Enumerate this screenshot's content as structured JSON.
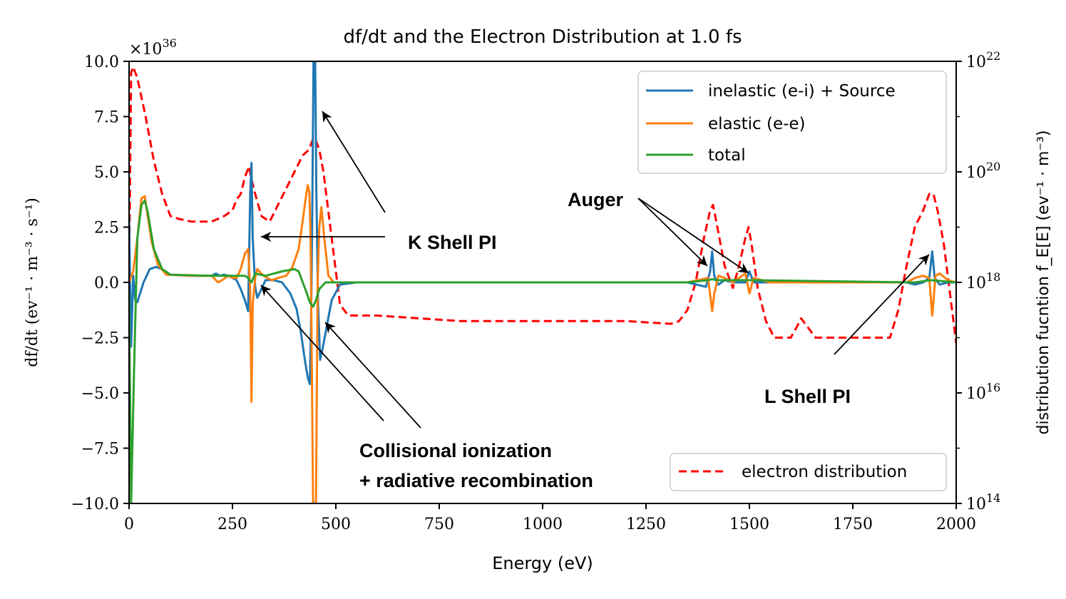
{
  "chart_data": {
    "type": "line",
    "title": "df/dt and the Electron Distribution at 1.0 fs",
    "xlabel": "Energy (eV)",
    "ylabel_left": "df/dt (ev⁻¹ · m⁻³ · s⁻¹)",
    "ylabel_right": "distribution fucntion f_E[E] (ev⁻¹ · m⁻³)",
    "left_axis_multiplier": "×10^36",
    "xlim": [
      0,
      2000
    ],
    "ylim_left": [
      -10.0,
      10.0
    ],
    "ylim_right_log10": [
      14,
      22
    ],
    "x_ticks": [
      "0",
      "250",
      "500",
      "750",
      "1000",
      "1250",
      "1500",
      "1750",
      "2000"
    ],
    "y_ticks_left": [
      "10.0",
      "7.5",
      "5.0",
      "2.5",
      "0.0",
      "−2.5",
      "−5.0",
      "−7.5",
      "−10.0"
    ],
    "y_ticks_right": [
      "10^22",
      "10^20",
      "10^18",
      "10^16",
      "10^14"
    ],
    "series": [
      {
        "name": "inelastic (e-i) + Source",
        "color": "#1f77b4",
        "axis": "left",
        "points": [
          [
            0,
            3.0
          ],
          [
            5,
            -2.9
          ],
          [
            10,
            0.3
          ],
          [
            15,
            -0.8
          ],
          [
            20,
            -0.9
          ],
          [
            35,
            0.0
          ],
          [
            50,
            0.6
          ],
          [
            65,
            0.7
          ],
          [
            80,
            0.6
          ],
          [
            100,
            0.35
          ],
          [
            150,
            0.3
          ],
          [
            200,
            0.3
          ],
          [
            210,
            0.4
          ],
          [
            220,
            0.3
          ],
          [
            230,
            0.35
          ],
          [
            240,
            0.3
          ],
          [
            250,
            0.2
          ],
          [
            260,
            0.1
          ],
          [
            270,
            -0.3
          ],
          [
            280,
            -0.8
          ],
          [
            288,
            -1.3
          ],
          [
            293,
            4.0
          ],
          [
            296,
            5.4
          ],
          [
            299,
            2.0
          ],
          [
            305,
            -0.2
          ],
          [
            310,
            -0.7
          ],
          [
            320,
            -0.3
          ],
          [
            330,
            0.1
          ],
          [
            350,
            0.1
          ],
          [
            370,
            0.0
          ],
          [
            390,
            -0.5
          ],
          [
            405,
            -1.2
          ],
          [
            415,
            -2.2
          ],
          [
            425,
            -3.5
          ],
          [
            432,
            -4.3
          ],
          [
            437,
            -4.6
          ],
          [
            440,
            -2.0
          ],
          [
            443,
            3.0
          ],
          [
            446,
            10.0
          ],
          [
            450,
            10.0
          ],
          [
            453,
            4.0
          ],
          [
            457,
            -1.0
          ],
          [
            462,
            -3.5
          ],
          [
            468,
            -3.0
          ],
          [
            478,
            -2.0
          ],
          [
            490,
            -0.8
          ],
          [
            510,
            -0.1
          ],
          [
            550,
            0.0
          ],
          [
            1350,
            0.0
          ],
          [
            1395,
            -0.2
          ],
          [
            1405,
            0.5
          ],
          [
            1410,
            1.4
          ],
          [
            1415,
            0.3
          ],
          [
            1425,
            -0.1
          ],
          [
            1440,
            0.1
          ],
          [
            1460,
            0.0
          ],
          [
            1490,
            0.0
          ],
          [
            1500,
            0.5
          ],
          [
            1510,
            0.0
          ],
          [
            1550,
            0.0
          ],
          [
            1880,
            0.0
          ],
          [
            1900,
            -0.1
          ],
          [
            1920,
            0.0
          ],
          [
            1935,
            0.2
          ],
          [
            1942,
            1.4
          ],
          [
            1948,
            0.2
          ],
          [
            1960,
            -0.1
          ],
          [
            1980,
            0.0
          ],
          [
            2000,
            0.0
          ]
        ]
      },
      {
        "name": "elastic (e-e)",
        "color": "#ff7f0e",
        "axis": "left",
        "points": [
          [
            0,
            0.0
          ],
          [
            10,
            0.5
          ],
          [
            20,
            2.0
          ],
          [
            30,
            3.8
          ],
          [
            38,
            3.9
          ],
          [
            45,
            3.0
          ],
          [
            55,
            1.8
          ],
          [
            70,
            0.8
          ],
          [
            90,
            0.35
          ],
          [
            150,
            0.3
          ],
          [
            200,
            0.3
          ],
          [
            210,
            0.1
          ],
          [
            215,
            0.0
          ],
          [
            225,
            0.1
          ],
          [
            240,
            0.3
          ],
          [
            250,
            0.2
          ],
          [
            260,
            0.2
          ],
          [
            270,
            0.6
          ],
          [
            280,
            1.3
          ],
          [
            288,
            1.5
          ],
          [
            293,
            -0.3
          ],
          [
            296,
            -5.4
          ],
          [
            299,
            -1.0
          ],
          [
            305,
            0.2
          ],
          [
            310,
            0.6
          ],
          [
            325,
            0.3
          ],
          [
            345,
            0.1
          ],
          [
            360,
            0.2
          ],
          [
            380,
            0.3
          ],
          [
            395,
            0.7
          ],
          [
            410,
            1.5
          ],
          [
            420,
            2.8
          ],
          [
            427,
            3.8
          ],
          [
            432,
            4.4
          ],
          [
            436,
            4.1
          ],
          [
            439,
            2.0
          ],
          [
            442,
            -4.0
          ],
          [
            445,
            -10.0
          ],
          [
            452,
            -10.0
          ],
          [
            456,
            0.0
          ],
          [
            460,
            2.5
          ],
          [
            465,
            3.4
          ],
          [
            472,
            2.0
          ],
          [
            482,
            0.3
          ],
          [
            495,
            0.0
          ],
          [
            1350,
            0.0
          ],
          [
            1400,
            0.2
          ],
          [
            1410,
            -1.3
          ],
          [
            1415,
            -0.5
          ],
          [
            1425,
            0.3
          ],
          [
            1440,
            0.2
          ],
          [
            1460,
            0.0
          ],
          [
            1490,
            0.4
          ],
          [
            1500,
            -0.5
          ],
          [
            1510,
            0.2
          ],
          [
            1550,
            0.0
          ],
          [
            1880,
            0.0
          ],
          [
            1900,
            0.2
          ],
          [
            1920,
            0.3
          ],
          [
            1935,
            0.2
          ],
          [
            1942,
            -1.5
          ],
          [
            1950,
            0.3
          ],
          [
            1960,
            0.4
          ],
          [
            1980,
            0.1
          ],
          [
            2000,
            0.0
          ]
        ]
      },
      {
        "name": "total",
        "color": "#2ca02c",
        "axis": "left",
        "points": [
          [
            0,
            -0.5
          ],
          [
            5,
            -10.0
          ],
          [
            12,
            -4.0
          ],
          [
            20,
            2.0
          ],
          [
            30,
            3.5
          ],
          [
            38,
            3.7
          ],
          [
            45,
            3.2
          ],
          [
            60,
            1.5
          ],
          [
            80,
            0.6
          ],
          [
            100,
            0.35
          ],
          [
            200,
            0.3
          ],
          [
            250,
            0.3
          ],
          [
            280,
            0.3
          ],
          [
            288,
            0.2
          ],
          [
            296,
            0.0
          ],
          [
            305,
            0.4
          ],
          [
            330,
            0.3
          ],
          [
            370,
            0.5
          ],
          [
            400,
            0.6
          ],
          [
            410,
            0.5
          ],
          [
            420,
            0.0
          ],
          [
            430,
            -0.5
          ],
          [
            437,
            -0.9
          ],
          [
            445,
            -1.1
          ],
          [
            452,
            -0.8
          ],
          [
            460,
            -0.3
          ],
          [
            475,
            0.0
          ],
          [
            500,
            0.0
          ],
          [
            1350,
            0.0
          ],
          [
            1400,
            0.1
          ],
          [
            1410,
            0.15
          ],
          [
            1420,
            0.1
          ],
          [
            1500,
            0.1
          ],
          [
            1900,
            0.0
          ],
          [
            1940,
            0.1
          ],
          [
            2000,
            0.0
          ]
        ]
      },
      {
        "name": "electron distribution",
        "color": "#ff0000",
        "axis": "right",
        "style": "dashed",
        "log10_points": [
          [
            0,
            18.0
          ],
          [
            5,
            21.8
          ],
          [
            10,
            21.9
          ],
          [
            20,
            21.7
          ],
          [
            40,
            21.0
          ],
          [
            60,
            20.2
          ],
          [
            80,
            19.6
          ],
          [
            100,
            19.2
          ],
          [
            120,
            19.15
          ],
          [
            150,
            19.1
          ],
          [
            200,
            19.1
          ],
          [
            230,
            19.2
          ],
          [
            250,
            19.3
          ],
          [
            260,
            19.5
          ],
          [
            270,
            19.6
          ],
          [
            280,
            19.9
          ],
          [
            290,
            20.1
          ],
          [
            295,
            19.9
          ],
          [
            305,
            19.6
          ],
          [
            320,
            19.2
          ],
          [
            340,
            19.1
          ],
          [
            360,
            19.4
          ],
          [
            380,
            19.7
          ],
          [
            400,
            20.0
          ],
          [
            420,
            20.3
          ],
          [
            435,
            20.4
          ],
          [
            445,
            20.6
          ],
          [
            450,
            20.6
          ],
          [
            460,
            20.4
          ],
          [
            470,
            20.0
          ],
          [
            480,
            19.4
          ],
          [
            495,
            18.5
          ],
          [
            510,
            17.6
          ],
          [
            530,
            17.4
          ],
          [
            600,
            17.4
          ],
          [
            800,
            17.3
          ],
          [
            1000,
            17.3
          ],
          [
            1200,
            17.3
          ],
          [
            1310,
            17.25
          ],
          [
            1330,
            17.3
          ],
          [
            1350,
            17.5
          ],
          [
            1370,
            18.0
          ],
          [
            1390,
            18.8
          ],
          [
            1405,
            19.3
          ],
          [
            1412,
            19.4
          ],
          [
            1420,
            19.1
          ],
          [
            1440,
            18.3
          ],
          [
            1460,
            17.9
          ],
          [
            1475,
            18.3
          ],
          [
            1490,
            18.8
          ],
          [
            1498,
            19.0
          ],
          [
            1505,
            18.7
          ],
          [
            1520,
            17.9
          ],
          [
            1540,
            17.3
          ],
          [
            1560,
            17.0
          ],
          [
            1600,
            17.0
          ],
          [
            1615,
            17.2
          ],
          [
            1625,
            17.35
          ],
          [
            1640,
            17.2
          ],
          [
            1660,
            17.0
          ],
          [
            1700,
            17.0
          ],
          [
            1800,
            17.0
          ],
          [
            1840,
            17.0
          ],
          [
            1860,
            17.5
          ],
          [
            1880,
            18.3
          ],
          [
            1900,
            19.0
          ],
          [
            1920,
            19.3
          ],
          [
            1935,
            19.6
          ],
          [
            1945,
            19.6
          ],
          [
            1955,
            19.3
          ],
          [
            1970,
            18.7
          ],
          [
            1985,
            17.8
          ],
          [
            2000,
            16.9
          ]
        ]
      }
    ],
    "legend_upper": {
      "position": "top-right",
      "entries": [
        "inelastic (e-i) + Source",
        "elastic (e-e)",
        "total"
      ]
    },
    "legend_lower": {
      "position": "bottom-right",
      "entries": [
        "electron distribution"
      ]
    },
    "annotations": [
      {
        "text": "K Shell PI"
      },
      {
        "text": "Collisional ionization"
      },
      {
        "text": "+ radiative recombination"
      },
      {
        "text": "Auger"
      },
      {
        "text": "L Shell PI"
      }
    ]
  }
}
